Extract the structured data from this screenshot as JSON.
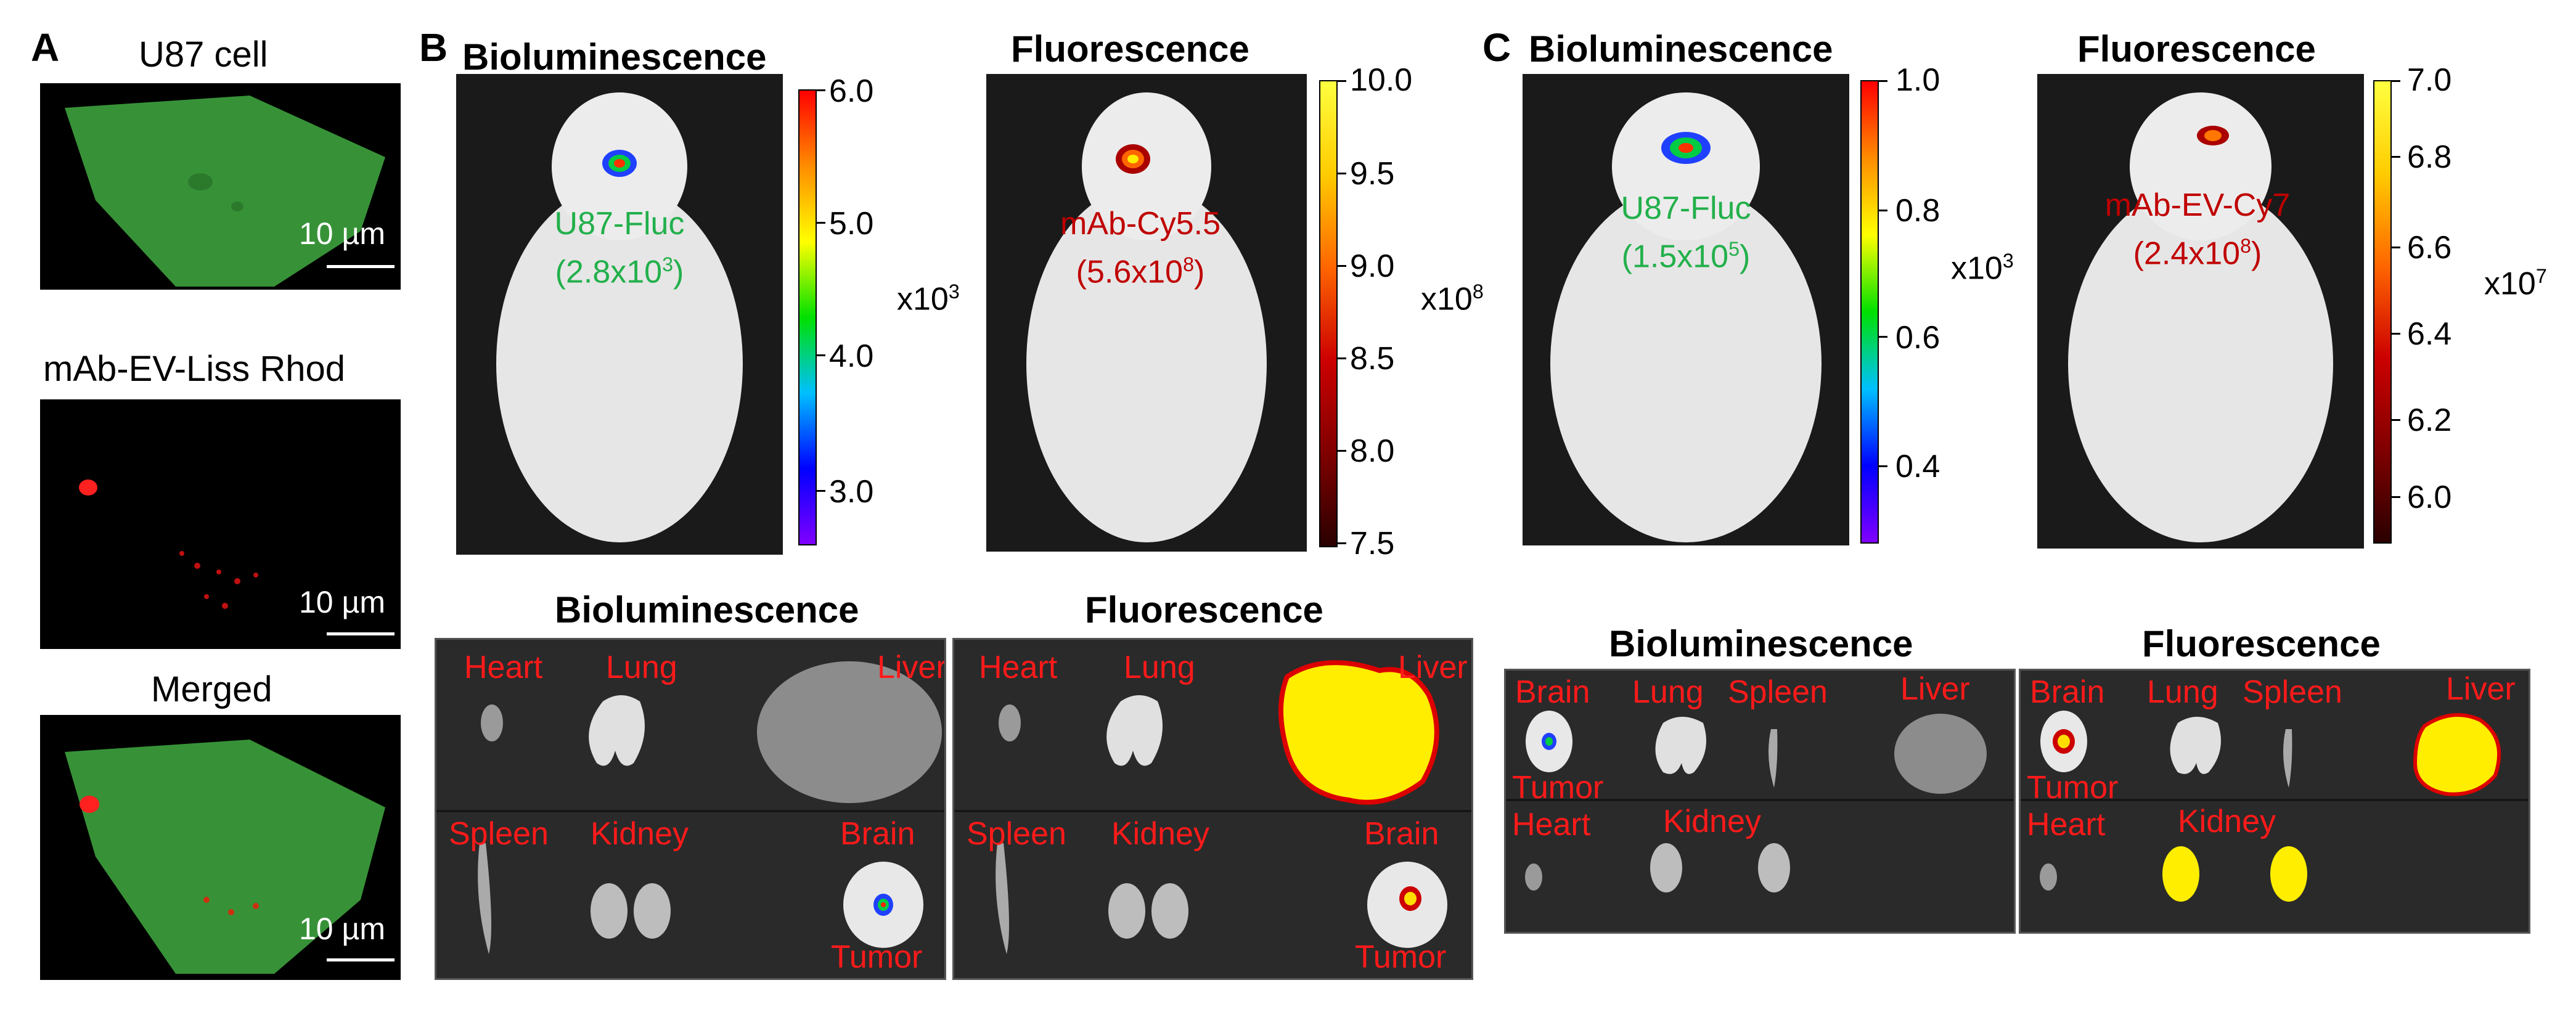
{
  "panel_a": {
    "letter": "A",
    "images": [
      {
        "title": "U87 cell",
        "scale": "10 µm"
      },
      {
        "title": "mAb-EV-Liss Rhod",
        "scale": "10 µm"
      },
      {
        "title": "Merged",
        "scale": "10 µm"
      }
    ]
  },
  "panel_b": {
    "letter": "B",
    "biolum": {
      "title": "Bioluminescence",
      "label_name": "U87-Fluc",
      "label_value": "(2.8x10",
      "label_sup": "3",
      "label_close": ")",
      "colorbar": {
        "ticks": [
          "6.0",
          "5.0",
          "4.0",
          "3.0"
        ],
        "multiplier": "x10",
        "multiplier_exp": "3"
      }
    },
    "fluor": {
      "title": "Fluorescence",
      "label_name": "mAb-Cy5.5",
      "label_value": "(5.6x10",
      "label_sup": "8",
      "label_close": ")",
      "colorbar": {
        "ticks": [
          "10.0",
          "9.5",
          "9.0",
          "8.5",
          "8.0",
          "7.5"
        ],
        "multiplier": "x10",
        "multiplier_exp": "8"
      }
    },
    "organs_biolum": {
      "title": "Bioluminescence",
      "labels": {
        "heart": "Heart",
        "lung": "Lung",
        "liver": "Liver",
        "spleen": "Spleen",
        "kidney": "Kidney",
        "brain": "Brain",
        "tumor": "Tumor"
      }
    },
    "organs_fluor": {
      "title": "Fluorescence",
      "labels": {
        "heart": "Heart",
        "lung": "Lung",
        "liver": "Liver",
        "spleen": "Spleen",
        "kidney": "Kidney",
        "brain": "Brain",
        "tumor": "Tumor"
      }
    }
  },
  "panel_c": {
    "letter": "C",
    "biolum": {
      "title": "Bioluminescence",
      "label_name": "U87-Fluc",
      "label_value": "(1.5x10",
      "label_sup": "5",
      "label_close": ")",
      "colorbar": {
        "ticks": [
          "1.0",
          "0.8",
          "0.6",
          "0.4"
        ],
        "multiplier": "x10",
        "multiplier_exp": "3"
      }
    },
    "fluor": {
      "title": "Fluorescence",
      "label_name": "mAb-EV-Cy7",
      "label_value": "(2.4x10",
      "label_sup": "8",
      "label_close": ")",
      "colorbar": {
        "ticks": [
          "7.0",
          "6.8",
          "6.6",
          "6.4",
          "6.2",
          "6.0"
        ],
        "multiplier": "x10",
        "multiplier_exp": "7"
      }
    },
    "organs_biolum": {
      "title": "Bioluminescence",
      "labels": {
        "brain": "Brain",
        "lung": "Lung",
        "spleen": "Spleen",
        "liver": "Liver",
        "tumor": "Tumor",
        "heart": "Heart",
        "kidney": "Kidney"
      }
    },
    "organs_fluor": {
      "title": "Fluorescence",
      "labels": {
        "brain": "Brain",
        "lung": "Lung",
        "spleen": "Spleen",
        "liver": "Liver",
        "tumor": "Tumor",
        "heart": "Heart",
        "kidney": "Kidney"
      }
    }
  },
  "colors": {
    "label_green": "#22b04b",
    "label_red": "#c00000",
    "organ_label": "#ff1a1a",
    "cell_green": "#2f8f2f",
    "hot_yellow": "#ffee00"
  }
}
